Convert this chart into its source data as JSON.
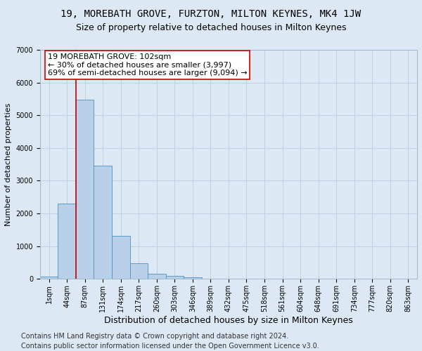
{
  "title": "19, MOREBATH GROVE, FURZTON, MILTON KEYNES, MK4 1JW",
  "subtitle": "Size of property relative to detached houses in Milton Keynes",
  "xlabel": "Distribution of detached houses by size in Milton Keynes",
  "ylabel": "Number of detached properties",
  "footer_line1": "Contains HM Land Registry data © Crown copyright and database right 2024.",
  "footer_line2": "Contains public sector information licensed under the Open Government Licence v3.0.",
  "bin_labels": [
    "1sqm",
    "44sqm",
    "87sqm",
    "131sqm",
    "174sqm",
    "217sqm",
    "260sqm",
    "303sqm",
    "346sqm",
    "389sqm",
    "432sqm",
    "475sqm",
    "518sqm",
    "561sqm",
    "604sqm",
    "648sqm",
    "691sqm",
    "734sqm",
    "777sqm",
    "820sqm",
    "863sqm"
  ],
  "bar_heights": [
    80,
    2300,
    5480,
    3450,
    1310,
    470,
    155,
    90,
    55,
    0,
    0,
    0,
    0,
    0,
    0,
    0,
    0,
    0,
    0,
    0,
    0
  ],
  "bar_color": "#b8d0e8",
  "bar_edge_color": "#5090c0",
  "vline_x_index": 2,
  "vline_color": "#cc0000",
  "annotation_text": "19 MOREBATH GROVE: 102sqm\n← 30% of detached houses are smaller (3,997)\n69% of semi-detached houses are larger (9,094) →",
  "annotation_box_color": "white",
  "annotation_box_edge_color": "#cc0000",
  "ylim": [
    0,
    7000
  ],
  "yticks": [
    0,
    1000,
    2000,
    3000,
    4000,
    5000,
    6000,
    7000
  ],
  "grid_color": "#c0d0e0",
  "bg_color": "#dce8f4",
  "title_fontsize": 10,
  "subtitle_fontsize": 9,
  "xlabel_fontsize": 9,
  "ylabel_fontsize": 8,
  "tick_fontsize": 7,
  "annotation_fontsize": 8,
  "footer_fontsize": 7
}
